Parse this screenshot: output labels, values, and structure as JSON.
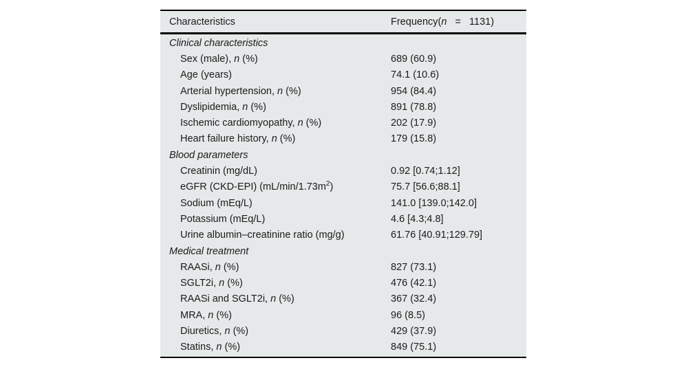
{
  "page": {
    "background": "#ffffff"
  },
  "table": {
    "background": "#e5e9e9",
    "border_color": "#000000",
    "text_color": "#1b1b1b",
    "header": {
      "col1": "Characteristics",
      "col2_parts": [
        {
          "t": "Frequency("
        },
        {
          "t": "n",
          "i": true
        },
        {
          "t": "   =   1131)"
        }
      ]
    },
    "sections": [
      {
        "title": "Clinical characteristics",
        "rows": [
          {
            "label_parts": [
              {
                "t": "Sex (male), "
              },
              {
                "t": "n",
                "i": true
              },
              {
                "t": " (%)"
              }
            ],
            "value": "689 (60.9)"
          },
          {
            "label_parts": [
              {
                "t": "Age (years)"
              }
            ],
            "value": "74.1 (10.6)"
          },
          {
            "label_parts": [
              {
                "t": "Arterial hypertension, "
              },
              {
                "t": "n",
                "i": true
              },
              {
                "t": " (%)"
              }
            ],
            "value": "954 (84.4)"
          },
          {
            "label_parts": [
              {
                "t": "Dyslipidemia, "
              },
              {
                "t": "n",
                "i": true
              },
              {
                "t": " (%)"
              }
            ],
            "value": "891 (78.8)"
          },
          {
            "label_parts": [
              {
                "t": "Ischemic cardiomyopathy, "
              },
              {
                "t": "n",
                "i": true
              },
              {
                "t": " (%)"
              }
            ],
            "value": "202 (17.9)"
          },
          {
            "label_parts": [
              {
                "t": "Heart failure history, "
              },
              {
                "t": "n",
                "i": true
              },
              {
                "t": " (%)"
              }
            ],
            "value": "179 (15.8)"
          }
        ]
      },
      {
        "title": "Blood parameters",
        "rows": [
          {
            "label_parts": [
              {
                "t": "Creatinin (mg/dL)"
              }
            ],
            "value": "0.92 [0.74;1.12]"
          },
          {
            "label_parts": [
              {
                "t": "eGFR (CKD-EPI) (mL/min/1.73m"
              },
              {
                "t": "2",
                "sup": true
              },
              {
                "t": ")"
              }
            ],
            "value": "75.7 [56.6;88.1]"
          },
          {
            "label_parts": [
              {
                "t": "Sodium (mEq/L)"
              }
            ],
            "value": "141.0 [139.0;142.0]"
          },
          {
            "label_parts": [
              {
                "t": "Potassium (mEq/L)"
              }
            ],
            "value": "4.6 [4.3;4.8]"
          },
          {
            "label_parts": [
              {
                "t": "Urine albumin–creatinine ratio (mg/g)"
              }
            ],
            "value": "61.76 [40.91;129.79]"
          }
        ]
      },
      {
        "title": "Medical treatment",
        "rows": [
          {
            "label_parts": [
              {
                "t": "RAASi, "
              },
              {
                "t": "n",
                "i": true
              },
              {
                "t": " (%)"
              }
            ],
            "value": "827 (73.1)"
          },
          {
            "label_parts": [
              {
                "t": "SGLT2i, "
              },
              {
                "t": "n",
                "i": true
              },
              {
                "t": " (%)"
              }
            ],
            "value": "476 (42.1)"
          },
          {
            "label_parts": [
              {
                "t": "RAASi and SGLT2i, "
              },
              {
                "t": "n",
                "i": true
              },
              {
                "t": " (%)"
              }
            ],
            "value": "367 (32.4)"
          },
          {
            "label_parts": [
              {
                "t": "MRA, "
              },
              {
                "t": "n",
                "i": true
              },
              {
                "t": " (%)"
              }
            ],
            "value": "96 (8.5)"
          },
          {
            "label_parts": [
              {
                "t": "Diuretics, "
              },
              {
                "t": "n",
                "i": true
              },
              {
                "t": " (%)"
              }
            ],
            "value": "429 (37.9)"
          },
          {
            "label_parts": [
              {
                "t": "Statins, "
              },
              {
                "t": "n",
                "i": true
              },
              {
                "t": " (%)"
              }
            ],
            "value": "849 (75.1)"
          }
        ]
      }
    ]
  }
}
